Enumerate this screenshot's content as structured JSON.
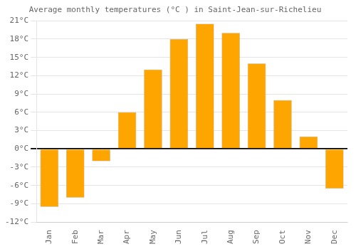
{
  "chart_data": {
    "type": "bar",
    "title": "Average monthly temperatures (°C ) in Saint-Jean-sur-Richelieu",
    "categories": [
      "Jan",
      "Feb",
      "Mar",
      "Apr",
      "May",
      "Jun",
      "Jul",
      "Aug",
      "Sep",
      "Oct",
      "Nov",
      "Dec"
    ],
    "values": [
      -9.5,
      -8.0,
      -2.0,
      6.0,
      13.0,
      18.0,
      20.5,
      19.0,
      14.0,
      8.0,
      2.0,
      -6.5
    ],
    "color": "#FFA500",
    "ylim": [
      -12,
      21
    ],
    "yticks": [
      {
        "value": -12,
        "label": "-12°C"
      },
      {
        "value": -9,
        "label": "-9°C"
      },
      {
        "value": -6,
        "label": "-6°C"
      },
      {
        "value": -3,
        "label": "-3°C"
      },
      {
        "value": 0,
        "label": "0°C"
      },
      {
        "value": 3,
        "label": "3°C"
      },
      {
        "value": 6,
        "label": "6°C"
      },
      {
        "value": 9,
        "label": "9°C"
      },
      {
        "value": 12,
        "label": "12°C"
      },
      {
        "value": 15,
        "label": "15°C"
      },
      {
        "value": 18,
        "label": "18°C"
      },
      {
        "value": 21,
        "label": "21°C"
      }
    ],
    "grid": true
  }
}
